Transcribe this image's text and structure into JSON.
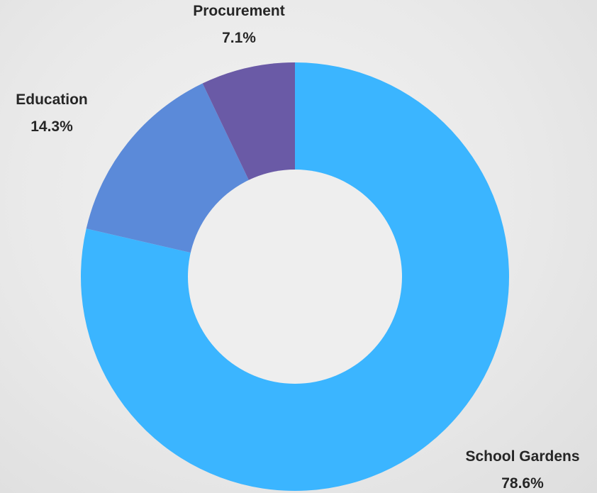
{
  "chart_data": {
    "type": "pie",
    "donut": true,
    "slices": [
      {
        "label": "School Gardens",
        "percent_label": "78.6%",
        "value": 78.6,
        "color": "#3bb5ff"
      },
      {
        "label": "Education",
        "percent_label": "14.3%",
        "value": 14.3,
        "color": "#5b8ad9"
      },
      {
        "label": "Procurement",
        "percent_label": "7.1%",
        "value": 7.1,
        "color": "#6a5aa6"
      }
    ],
    "start_angle_deg": 0,
    "direction": "clockwise",
    "legend": "none"
  }
}
